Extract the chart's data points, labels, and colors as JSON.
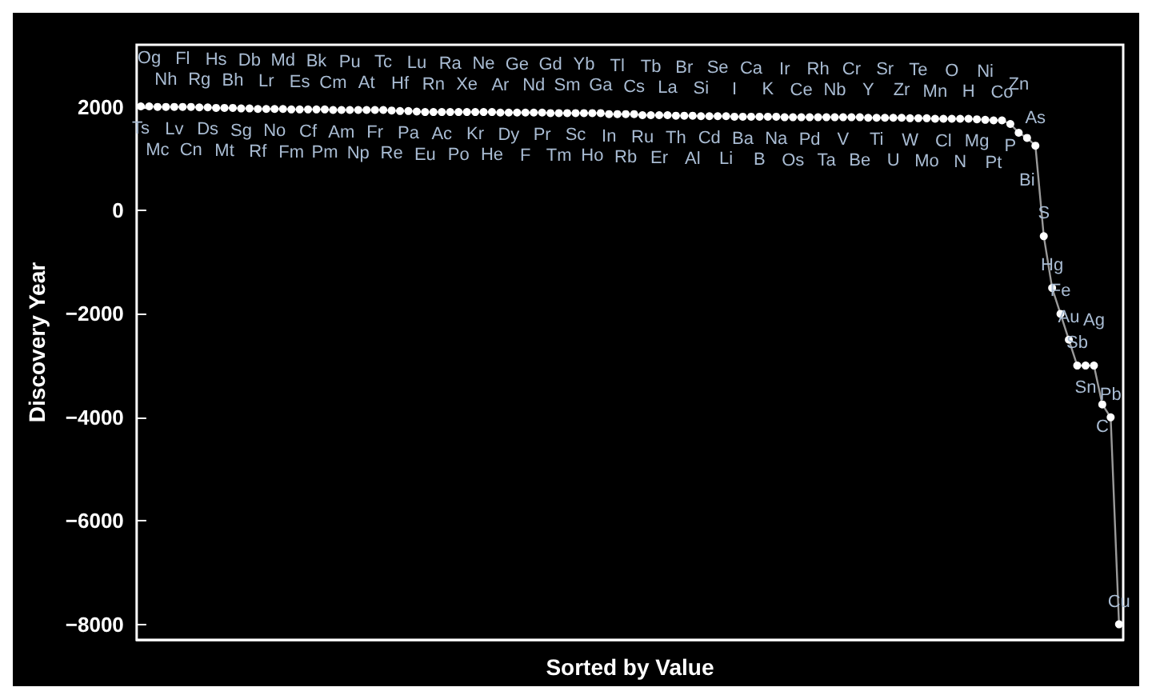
{
  "chart_data": {
    "type": "line",
    "xlabel": "Sorted by Value",
    "ylabel": "Discovery Year",
    "categories": [
      "Ts",
      "Og",
      "Mc",
      "Nh",
      "Lv",
      "Fl",
      "Cn",
      "Rg",
      "Ds",
      "Hs",
      "Mt",
      "Bh",
      "Sg",
      "Db",
      "Rf",
      "Lr",
      "No",
      "Md",
      "Fm",
      "Es",
      "Cf",
      "Bk",
      "Pm",
      "Cm",
      "Am",
      "Pu",
      "Np",
      "At",
      "Fr",
      "Tc",
      "Re",
      "Hf",
      "Pa",
      "Lu",
      "Eu",
      "Rn",
      "Ac",
      "Ra",
      "Po",
      "Xe",
      "Kr",
      "Ne",
      "He",
      "Ar",
      "Dy",
      "Ge",
      "F",
      "Nd",
      "Pr",
      "Gd",
      "Tm",
      "Sm",
      "Sc",
      "Yb",
      "Ho",
      "Ga",
      "In",
      "Tl",
      "Rb",
      "Cs",
      "Ru",
      "Tb",
      "Er",
      "La",
      "Th",
      "Br",
      "Al",
      "Si",
      "Cd",
      "Se",
      "Li",
      "I",
      "Ba",
      "Ca",
      "B",
      "K",
      "Na",
      "Ir",
      "Os",
      "Ce",
      "Pd",
      "Rh",
      "Ta",
      "Nb",
      "V",
      "Cr",
      "Be",
      "Y",
      "Ti",
      "Sr",
      "U",
      "Zr",
      "W",
      "Te",
      "Mo",
      "Mn",
      "Cl",
      "O",
      "N",
      "H",
      "Mg",
      "Ni",
      "Pt",
      "Co",
      "P",
      "Zn",
      "Bi",
      "As",
      "S",
      "Hg",
      "Fe",
      "Au",
      "Sb",
      "Sn",
      "Ag",
      "C",
      "Pb",
      "Cu"
    ],
    "series": [
      {
        "color": "#ffffff",
        "values": [
          2010,
          2010,
          2000,
          2000,
          2000,
          2000,
          2000,
          1990,
          1990,
          1980,
          1980,
          1980,
          1970,
          1970,
          1960,
          1960,
          1960,
          1960,
          1950,
          1950,
          1950,
          1950,
          1950,
          1940,
          1940,
          1940,
          1940,
          1940,
          1940,
          1940,
          1930,
          1920,
          1920,
          1910,
          1900,
          1900,
          1900,
          1900,
          1900,
          1900,
          1900,
          1900,
          1900,
          1890,
          1890,
          1890,
          1890,
          1890,
          1890,
          1880,
          1880,
          1880,
          1880,
          1880,
          1880,
          1880,
          1860,
          1860,
          1860,
          1860,
          1840,
          1840,
          1840,
          1840,
          1830,
          1830,
          1830,
          1820,
          1820,
          1820,
          1820,
          1810,
          1810,
          1810,
          1810,
          1810,
          1810,
          1800,
          1800,
          1800,
          1800,
          1800,
          1800,
          1800,
          1800,
          1800,
          1800,
          1790,
          1790,
          1790,
          1790,
          1790,
          1780,
          1780,
          1780,
          1770,
          1770,
          1770,
          1770,
          1770,
          1760,
          1750,
          1740,
          1740,
          1670,
          1500,
          1400,
          1250,
          -500,
          -1500,
          -2000,
          -2500,
          -3000,
          -3000,
          -3000,
          -3750,
          -4000,
          -8000
        ]
      }
    ],
    "ylim": [
      -8300,
      3200
    ],
    "yticks": [
      -8000,
      -6000,
      -4000,
      -2000,
      0,
      2000
    ],
    "marker": "circle",
    "grid": false
  }
}
